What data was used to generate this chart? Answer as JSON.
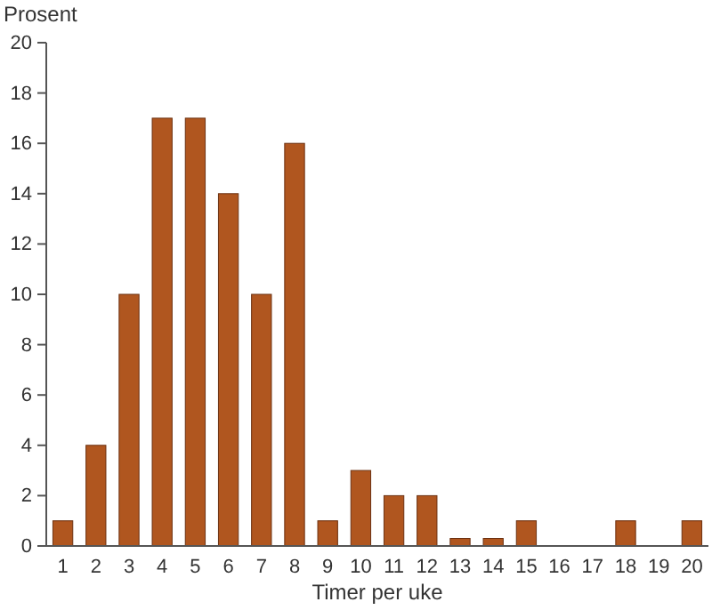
{
  "chart_data": {
    "type": "bar",
    "xlabel": "Timer per uke",
    "ylabel": "Prosent",
    "categories": [
      "1",
      "2",
      "3",
      "4",
      "5",
      "6",
      "7",
      "8",
      "9",
      "10",
      "11",
      "12",
      "13",
      "14",
      "15",
      "16",
      "17",
      "18",
      "19",
      "20"
    ],
    "values": [
      1,
      4,
      10,
      17,
      17,
      14,
      10,
      16,
      1,
      3,
      2,
      2,
      0.3,
      0.3,
      1,
      0,
      0,
      1,
      0,
      1
    ],
    "color": "#b0561f",
    "ylim": [
      0,
      20
    ],
    "yticks": [
      0,
      2,
      4,
      6,
      8,
      10,
      12,
      14,
      16,
      18,
      20
    ],
    "grid": false,
    "legend": false
  }
}
